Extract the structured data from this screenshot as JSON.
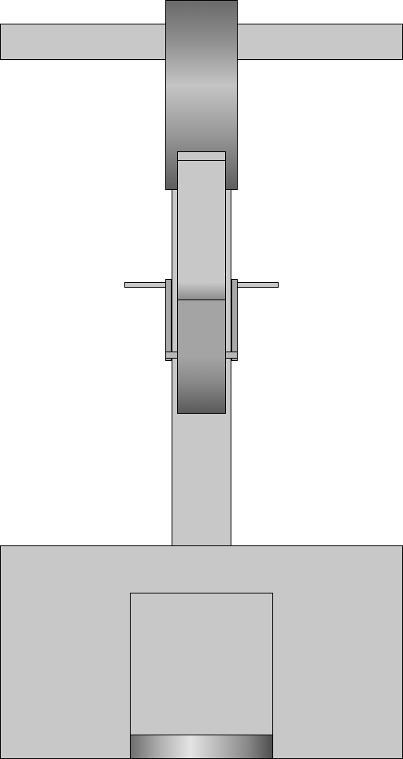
{
  "diagram": {
    "kind": "mechanical-assembly-front-view",
    "colors": {
      "part_fill": "#c8c8c8",
      "outline": "#000000",
      "background": "#ffffff",
      "bracket_fill": "#a8a8a8"
    },
    "parts": [
      "top-bar",
      "upper-drum",
      "column",
      "link-upper",
      "link-lower",
      "bracket-left",
      "bracket-right",
      "pin-left",
      "pin-right",
      "base",
      "housing",
      "roller"
    ]
  }
}
